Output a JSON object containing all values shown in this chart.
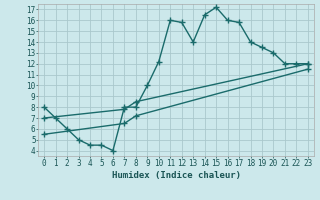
{
  "xlabel": "Humidex (Indice chaleur)",
  "bg_color": "#cce8eb",
  "grid_color": "#aac8cc",
  "line_color": "#1a6b6b",
  "xlim": [
    -0.5,
    23.5
  ],
  "ylim": [
    3.5,
    17.5
  ],
  "xticks": [
    0,
    1,
    2,
    3,
    4,
    5,
    6,
    7,
    8,
    9,
    10,
    11,
    12,
    13,
    14,
    15,
    16,
    17,
    18,
    19,
    20,
    21,
    22,
    23
  ],
  "yticks": [
    4,
    5,
    6,
    7,
    8,
    9,
    10,
    11,
    12,
    13,
    14,
    15,
    16,
    17
  ],
  "series1_x": [
    0,
    1,
    2,
    3,
    4,
    5,
    6,
    7,
    8,
    9,
    10,
    11,
    12,
    13,
    14,
    15,
    16,
    17,
    18,
    19,
    20,
    21,
    22,
    23
  ],
  "series1_y": [
    8.0,
    7.0,
    6.0,
    5.0,
    4.5,
    4.5,
    4.0,
    8.0,
    8.0,
    10.0,
    12.2,
    16.0,
    15.8,
    14.0,
    16.5,
    17.2,
    16.0,
    15.8,
    14.0,
    13.5,
    13.0,
    12.0,
    12.0,
    12.0
  ],
  "series2_x": [
    0,
    7,
    8,
    23
  ],
  "series2_y": [
    7.0,
    7.8,
    8.5,
    12.0
  ],
  "series3_x": [
    0,
    7,
    8,
    23
  ],
  "series3_y": [
    5.5,
    6.5,
    7.2,
    11.5
  ],
  "marker": "D",
  "markersize": 2.5,
  "linewidth": 1.0
}
